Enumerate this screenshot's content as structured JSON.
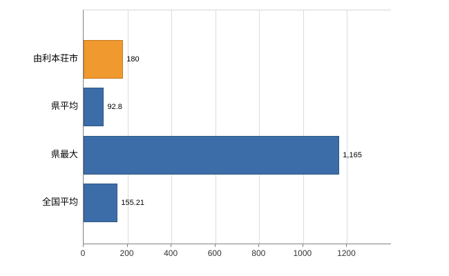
{
  "chart_data": {
    "type": "bar",
    "orientation": "horizontal",
    "title": "",
    "xlabel": "",
    "ylabel": "",
    "categories": [
      "由利本荘市",
      "県平均",
      "県最大",
      "全国平均"
    ],
    "values": [
      180,
      92.8,
      1165,
      155.21
    ],
    "value_labels": [
      "180",
      "92.8",
      "1,165",
      "155.21"
    ],
    "bar_colors": [
      "#f0992e",
      "#3c6da8",
      "#3c6da8",
      "#3c6da8"
    ],
    "bar_border_colors": [
      "#c57a20",
      "#2e5984",
      "#2e5984",
      "#2e5984"
    ],
    "xticks": [
      0,
      200,
      400,
      600,
      800,
      1000,
      1200
    ],
    "xtick_labels": [
      "0",
      "200",
      "400",
      "600",
      "800",
      "1000",
      "1200"
    ],
    "xlim": [
      0,
      1400
    ],
    "grid": "vertical-light",
    "legend": "none",
    "background": "#ffffff",
    "axis_color": "#808080",
    "gridline_color": "#dcdcdc"
  }
}
